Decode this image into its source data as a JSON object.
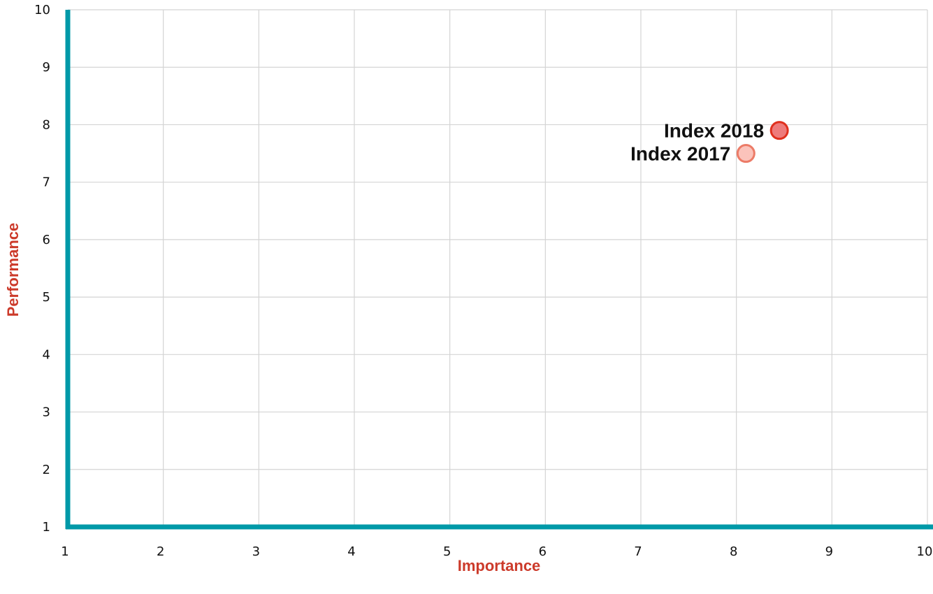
{
  "chart_data": {
    "type": "scatter",
    "xlabel": "Importance",
    "ylabel": "Performance",
    "xlim": [
      1,
      10
    ],
    "ylim": [
      1,
      10
    ],
    "xticks": [
      "1",
      "2",
      "3",
      "4",
      "5",
      "6",
      "7",
      "8",
      "9",
      "10"
    ],
    "yticks": [
      "1",
      "2",
      "3",
      "4",
      "5",
      "6",
      "7",
      "8",
      "9",
      "10"
    ],
    "grid": true,
    "points": [
      {
        "label": "Index 2018",
        "x": 8.45,
        "y": 7.9,
        "fill": "#ee7b7b",
        "stroke": "#e0301e"
      },
      {
        "label": "Index 2017",
        "x": 8.1,
        "y": 7.5,
        "fill": "#fbc3bb",
        "stroke": "#ec7b67"
      }
    ]
  },
  "colors": {
    "axis": "#0099a8",
    "axis_title": "#cc3a2a",
    "grid": "#d4d4d4"
  }
}
